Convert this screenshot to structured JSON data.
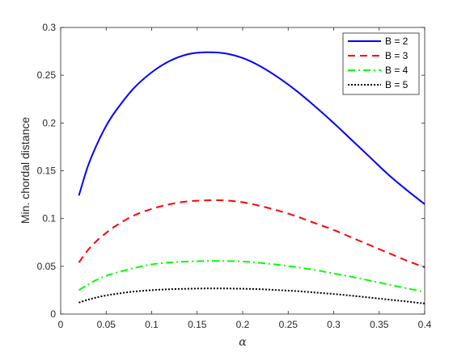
{
  "chart_data": {
    "type": "line",
    "xlabel": "α",
    "ylabel": "Min. chordal distance",
    "xlim": [
      0,
      0.4
    ],
    "ylim": [
      0,
      0.3
    ],
    "xticks": [
      0,
      0.05,
      0.1,
      0.15,
      0.2,
      0.25,
      0.3,
      0.35,
      0.4
    ],
    "xtick_labels": [
      "0",
      "0.05",
      "0.1",
      "0.15",
      "0.2",
      "0.25",
      "0.3",
      "0.35",
      "0.4"
    ],
    "yticks": [
      0,
      0.05,
      0.1,
      0.15,
      0.2,
      0.25,
      0.3
    ],
    "ytick_labels": [
      "0",
      "0.05",
      "0.1",
      "0.15",
      "0.2",
      "0.25",
      "0.3"
    ],
    "grid": false,
    "legend_position": "top-right",
    "x": [
      0.02,
      0.03,
      0.04,
      0.05,
      0.06,
      0.08,
      0.1,
      0.12,
      0.14,
      0.16,
      0.18,
      0.2,
      0.22,
      0.24,
      0.26,
      0.28,
      0.3,
      0.32,
      0.34,
      0.36,
      0.38,
      0.4
    ],
    "series": [
      {
        "name": "B = 2",
        "color": "#0000ff",
        "style": "solid",
        "values": [
          0.124,
          0.155,
          0.178,
          0.197,
          0.212,
          0.236,
          0.253,
          0.265,
          0.272,
          0.274,
          0.273,
          0.268,
          0.259,
          0.247,
          0.233,
          0.217,
          0.2,
          0.182,
          0.164,
          0.146,
          0.13,
          0.115
        ]
      },
      {
        "name": "B = 3",
        "color": "#ff0000",
        "style": "dashed",
        "values": [
          0.054,
          0.067,
          0.077,
          0.085,
          0.092,
          0.103,
          0.11,
          0.115,
          0.118,
          0.119,
          0.119,
          0.117,
          0.113,
          0.108,
          0.102,
          0.095,
          0.088,
          0.08,
          0.072,
          0.064,
          0.056,
          0.049
        ]
      },
      {
        "name": "B = 4",
        "color": "#00ff00",
        "style": "dashdot",
        "values": [
          0.025,
          0.031,
          0.036,
          0.04,
          0.043,
          0.048,
          0.052,
          0.054,
          0.055,
          0.0555,
          0.0555,
          0.055,
          0.0535,
          0.0515,
          0.049,
          0.046,
          0.0425,
          0.039,
          0.035,
          0.031,
          0.027,
          0.023
        ]
      },
      {
        "name": "B = 5",
        "color": "#000000",
        "style": "dotted",
        "values": [
          0.012,
          0.015,
          0.0175,
          0.0195,
          0.021,
          0.0235,
          0.025,
          0.026,
          0.0265,
          0.0268,
          0.0268,
          0.0265,
          0.026,
          0.025,
          0.024,
          0.0225,
          0.021,
          0.0192,
          0.0172,
          0.0152,
          0.0132,
          0.011
        ]
      }
    ]
  }
}
